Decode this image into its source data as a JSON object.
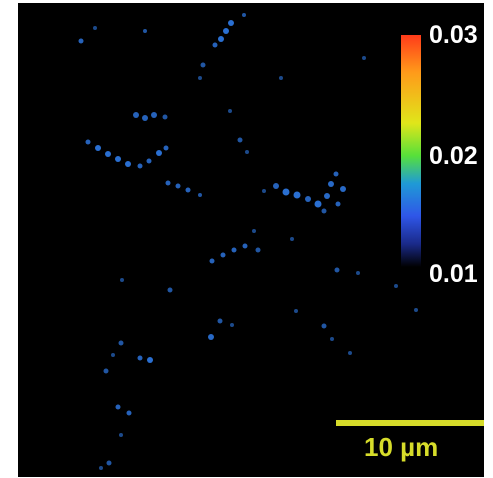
{
  "image": {
    "background": "#000000",
    "frame_border": "#ffffff"
  },
  "colorbar": {
    "ticks": [
      "0.03",
      "0.02",
      "0.01"
    ],
    "colors": [
      "#ff3b1a",
      "#ff9a1a",
      "#e0e61a",
      "#57e03a",
      "#1f9ad6",
      "#2f56e8",
      "#1a2a8a",
      "#000000"
    ]
  },
  "scalebar": {
    "label": "10 µm",
    "color": "#d6dc2a"
  },
  "speckle_color": "#2f7be8"
}
